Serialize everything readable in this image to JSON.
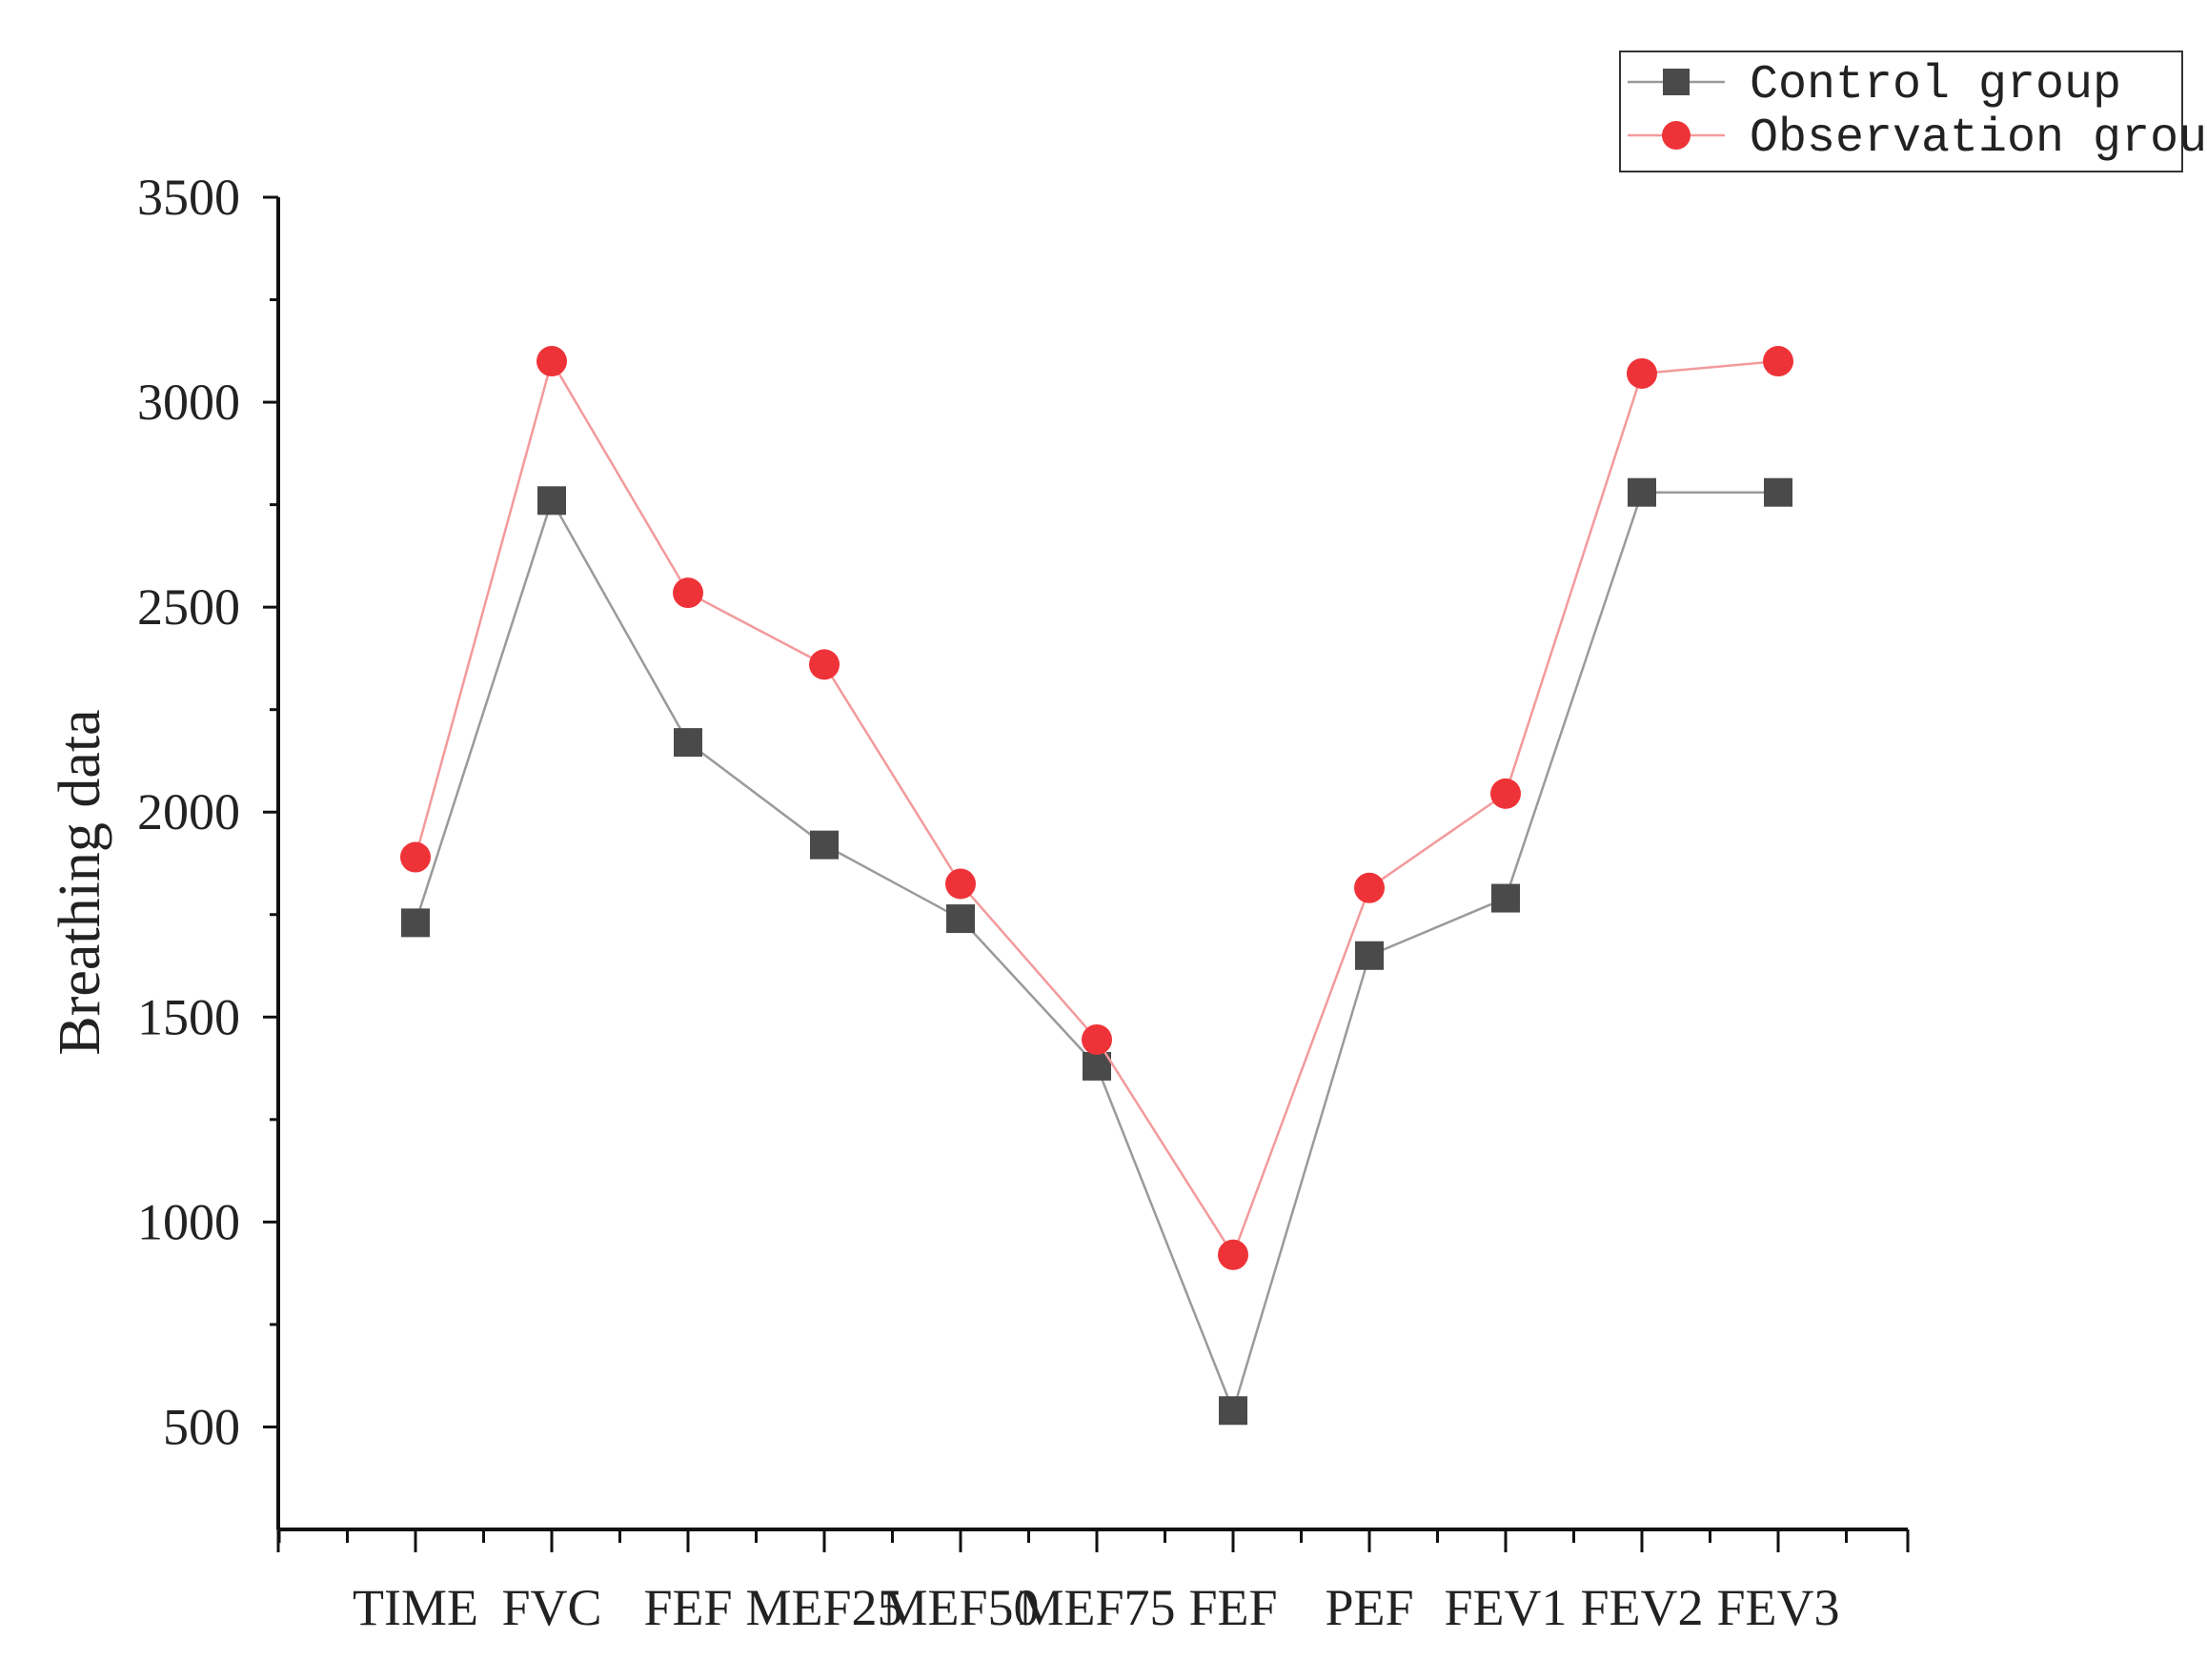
{
  "chart_data": {
    "type": "line",
    "title": "",
    "xlabel": "",
    "ylabel": "Breathing data",
    "categories": [
      "TIME",
      "FVC",
      "FEF",
      "MEF25",
      "MEF50",
      "MEF75",
      "FEF",
      "PEF",
      "FEV1",
      "FEV2",
      "FEV3"
    ],
    "ylim": [
      250,
      3500
    ],
    "yticks": [
      500,
      1000,
      1500,
      2000,
      2500,
      3000,
      3500
    ],
    "grid": false,
    "legend_position": "top-right",
    "series": [
      {
        "name": "Control group",
        "marker": "square",
        "color": "#4a4a4a",
        "line_color": "#9a9a9a",
        "values": [
          1730,
          2760,
          2170,
          1920,
          1740,
          1380,
          540,
          1650,
          1790,
          2780,
          2780
        ]
      },
      {
        "name": "Observation group",
        "marker": "circle",
        "color": "#ee3338",
        "line_color": "#f39a9c",
        "values": [
          1890,
          3100,
          2535,
          2360,
          1825,
          1445,
          920,
          1815,
          2045,
          3070,
          3100
        ]
      }
    ]
  }
}
